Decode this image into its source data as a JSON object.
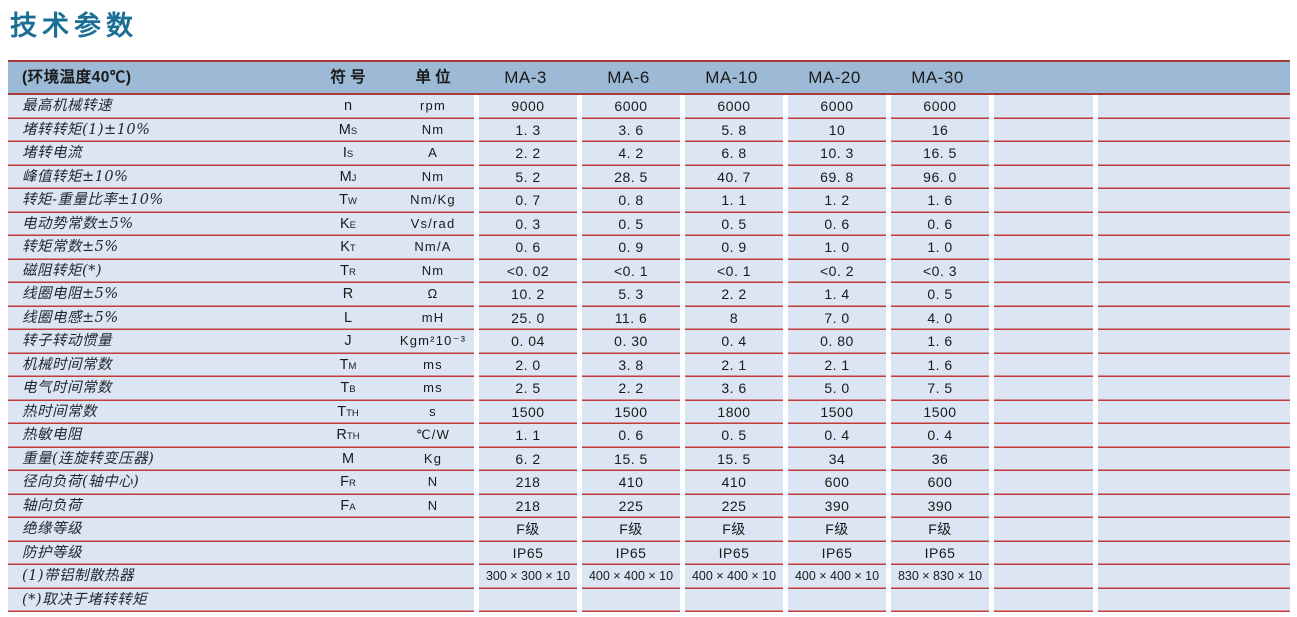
{
  "title": "技术参数",
  "colors": {
    "title_text": "#1b6f94",
    "header_bg": "#9cb9d5",
    "header_line": "#a83a3a",
    "row_bg": "#dbe5f3",
    "line_red": "#c23a3a",
    "text_dark": "#1a1a1a"
  },
  "table": {
    "header": {
      "condition": "(环境温度40℃)",
      "symbol": "符 号",
      "unit": "单 位",
      "models": [
        "MA-3",
        "MA-6",
        "MA-10",
        "MA-20",
        "MA-30"
      ],
      "empty_extra_columns": 2
    },
    "rows": [
      {
        "label": "最高机械转速",
        "symbol": "n",
        "sub": "",
        "unit": "rpm",
        "values": [
          "9000",
          "6000",
          "6000",
          "6000",
          "6000"
        ]
      },
      {
        "label": "堵转转矩(1)±10%",
        "symbol": "M",
        "sub": "S",
        "unit": "Nm",
        "values": [
          "1. 3",
          "3. 6",
          "5. 8",
          "10",
          "16"
        ]
      },
      {
        "label": "堵转电流",
        "symbol": "I",
        "sub": "S",
        "unit": "A",
        "values": [
          "2. 2",
          "4. 2",
          "6. 8",
          "10. 3",
          "16. 5"
        ]
      },
      {
        "label": "峰值转矩±10%",
        "symbol": "M",
        "sub": "J",
        "unit": "Nm",
        "values": [
          "5. 2",
          "28. 5",
          "40. 7",
          "69. 8",
          "96. 0"
        ]
      },
      {
        "label": "转矩-重量比率±10%",
        "symbol": "T",
        "sub": "W",
        "unit": "Nm/Kg",
        "values": [
          "0. 7",
          "0. 8",
          "1. 1",
          "1. 2",
          "1. 6"
        ]
      },
      {
        "label": "电动势常数±5%",
        "symbol": "K",
        "sub": "E",
        "unit": "Vs/rad",
        "values": [
          "0. 3",
          "0. 5",
          "0. 5",
          "0. 6",
          "0. 6"
        ]
      },
      {
        "label": "转矩常数±5%",
        "symbol": "K",
        "sub": "T",
        "unit": "Nm/A",
        "values": [
          "0. 6",
          "0. 9",
          "0. 9",
          "1. 0",
          "1. 0"
        ]
      },
      {
        "label": "磁阻转矩(*)",
        "symbol": "T",
        "sub": "R",
        "unit": "Nm",
        "values": [
          "<0. 02",
          "<0. 1",
          "<0. 1",
          "<0. 2",
          "<0. 3"
        ]
      },
      {
        "label": "线圈电阻±5%",
        "symbol": "R",
        "sub": "",
        "unit": "Ω",
        "values": [
          "10. 2",
          "5. 3",
          "2. 2",
          "1. 4",
          "0. 5"
        ]
      },
      {
        "label": "线圈电感±5%",
        "symbol": "L",
        "sub": "",
        "unit": "mH",
        "values": [
          "25. 0",
          "11. 6",
          "8",
          "7. 0",
          "4. 0"
        ]
      },
      {
        "label": "转子转动惯量",
        "symbol": "J",
        "sub": "",
        "unit": "Kgm²10⁻³",
        "values": [
          "0. 04",
          "0. 30",
          "0. 4",
          "0. 80",
          "1. 6"
        ]
      },
      {
        "label": "机械时间常数",
        "symbol": "T",
        "sub": "M",
        "unit": "ms",
        "values": [
          "2. 0",
          "3. 8",
          "2. 1",
          "2. 1",
          "1. 6"
        ]
      },
      {
        "label": "电气时间常数",
        "symbol": "T",
        "sub": "B",
        "unit": "ms",
        "values": [
          "2. 5",
          "2. 2",
          "3. 6",
          "5. 0",
          "7. 5"
        ]
      },
      {
        "label": "热时间常数",
        "symbol": "T",
        "sub": "TH",
        "unit": "s",
        "values": [
          "1500",
          "1500",
          "1800",
          "1500",
          "1500"
        ]
      },
      {
        "label": "热敏电阻",
        "symbol": "R",
        "sub": "TH",
        "unit": "℃/W",
        "values": [
          "1. 1",
          "0. 6",
          "0. 5",
          "0. 4",
          "0. 4"
        ]
      },
      {
        "label": "重量(连旋转变压器)",
        "symbol": "M",
        "sub": "",
        "unit": "Kg",
        "values": [
          "6. 2",
          "15. 5",
          "15. 5",
          "34",
          "36"
        ]
      },
      {
        "label": "径向负荷(轴中心)",
        "symbol": "F",
        "sub": "R",
        "unit": "N",
        "values": [
          "218",
          "410",
          "410",
          "600",
          "600"
        ]
      },
      {
        "label": "轴向负荷",
        "symbol": "F",
        "sub": "A",
        "unit": "N",
        "values": [
          "218",
          "225",
          "225",
          "390",
          "390"
        ]
      },
      {
        "label": "绝缘等级",
        "symbol": "",
        "sub": "",
        "unit": "",
        "values": [
          "F级",
          "F级",
          "F级",
          "F级",
          "F级"
        ]
      },
      {
        "label": "防护等级",
        "symbol": "",
        "sub": "",
        "unit": "",
        "values": [
          "IP65",
          "IP65",
          "IP65",
          "IP65",
          "IP65"
        ]
      },
      {
        "label": "(1)带铝制散热器",
        "symbol": "",
        "sub": "",
        "unit": "",
        "values": [
          "300 × 300 × 10",
          "400 × 400 × 10",
          "400 × 400 × 10",
          "400 × 400 × 10",
          "830 × 830 × 10"
        ]
      },
      {
        "label": "(*)取决于堵转转矩",
        "symbol": "",
        "sub": "",
        "unit": "",
        "values": [
          "",
          "",
          "",
          "",
          ""
        ]
      }
    ]
  }
}
